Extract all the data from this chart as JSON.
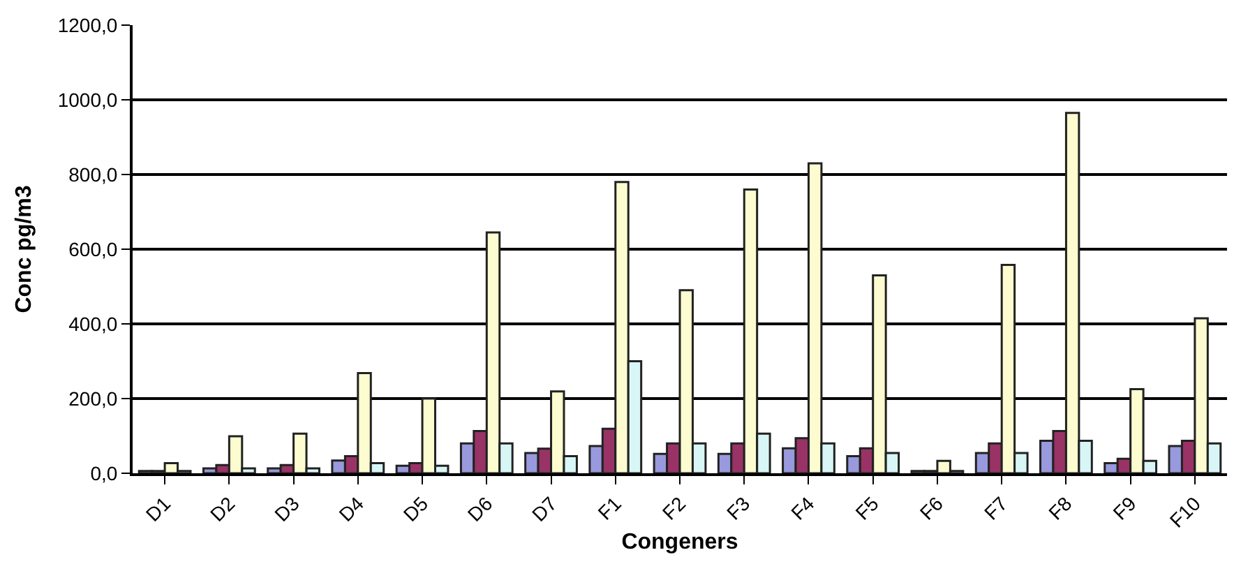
{
  "chart_data": {
    "type": "bar",
    "xlabel": "Congeners",
    "ylabel": "Conc pg/m3",
    "categories": [
      "D1",
      "D2",
      "D3",
      "D4",
      "D5",
      "D6",
      "D7",
      "F1",
      "F2",
      "F3",
      "F4",
      "F5",
      "F6",
      "F7",
      "F8",
      "F9",
      "F10"
    ],
    "series": [
      {
        "color": "#9999dd",
        "values": [
          6,
          13,
          13,
          34,
          20,
          80,
          54,
          73,
          52,
          52,
          67,
          46,
          6,
          54,
          87,
          27,
          73
        ]
      },
      {
        "color": "#993366",
        "values": [
          6,
          22,
          22,
          46,
          27,
          113,
          66,
          119,
          80,
          80,
          94,
          67,
          6,
          80,
          113,
          39,
          87
        ]
      },
      {
        "color": "#fcfcd0",
        "values": [
          27,
          99,
          106,
          268,
          200,
          645,
          219,
          780,
          490,
          760,
          830,
          530,
          33,
          558,
          965,
          225,
          415
        ]
      },
      {
        "color": "#d8f6f6",
        "values": [
          6,
          13,
          13,
          27,
          20,
          80,
          46,
          300,
          80,
          106,
          80,
          54,
          6,
          54,
          87,
          33,
          80
        ]
      }
    ],
    "ylim": [
      0,
      1200
    ],
    "yticks": [
      {
        "value": 0,
        "label": "0,0"
      },
      {
        "value": 200,
        "label": "200,0"
      },
      {
        "value": 400,
        "label": "400,0"
      },
      {
        "value": 600,
        "label": "600,0"
      },
      {
        "value": 800,
        "label": "800,0"
      },
      {
        "value": 1000,
        "label": "1000,0"
      },
      {
        "value": 1200,
        "label": "1200,0"
      }
    ],
    "grid": "y"
  }
}
